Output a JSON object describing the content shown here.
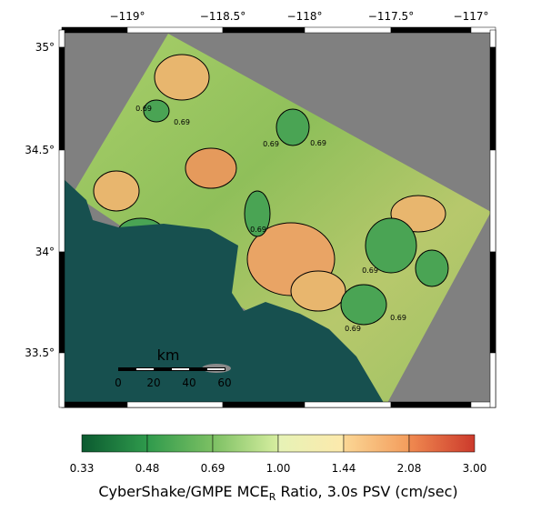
{
  "map": {
    "lon_labels": [
      "−119°",
      "−118.5°",
      "−118°",
      "−117.5°",
      "−117°"
    ],
    "lat_labels": [
      "35°",
      "34.5°",
      "34°",
      "33.5°"
    ],
    "contour_labels": [
      "0.69",
      "0.69",
      "0.69",
      "0.69",
      "0.69",
      "0.69",
      "0.69",
      "0.69"
    ],
    "scale_bar": {
      "unit": "km",
      "labels": [
        "0",
        "20",
        "40",
        "60"
      ]
    }
  },
  "colorbar": {
    "labels": [
      "0.33",
      "0.48",
      "0.69",
      "1.00",
      "1.44",
      "2.08",
      "3.00"
    ],
    "title": {
      "main": "CyberShake/GMPE MCE",
      "sub": "R",
      "rest": " Ratio, 3.0s PSV (cm/sec)"
    }
  }
}
